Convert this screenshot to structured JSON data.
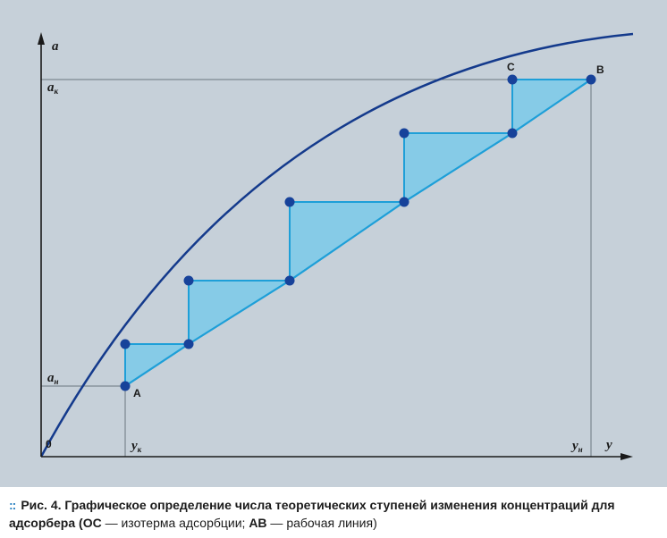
{
  "figure": {
    "axes": {
      "y_axis_label": "a",
      "x_axis_label": "y",
      "origin_label": "0",
      "a_k": {
        "main": "a",
        "sub": "к"
      },
      "a_n": {
        "main": "a",
        "sub": "н"
      },
      "y_k": {
        "main": "y",
        "sub": "к"
      },
      "y_n": {
        "main": "y",
        "sub": "н"
      }
    },
    "points": {
      "A": "A",
      "B": "B",
      "C": "C"
    },
    "colors": {
      "background": "#c6d0d9",
      "curve": "#143a8c",
      "working_line": "#1e9fd8",
      "step_fill": "#86cbe7",
      "marker": "#17429a"
    }
  },
  "caption": {
    "bullet": "::",
    "fig_number": "Рис. 4.",
    "text_main": "Графическое определение числа теоретических ступеней изменения концентраций для адсорбера (",
    "oc": "ОС",
    "text_oc": " — изотерма адсорбции; ",
    "ab": "АВ",
    "text_ab": " — рабочая линия)"
  }
}
